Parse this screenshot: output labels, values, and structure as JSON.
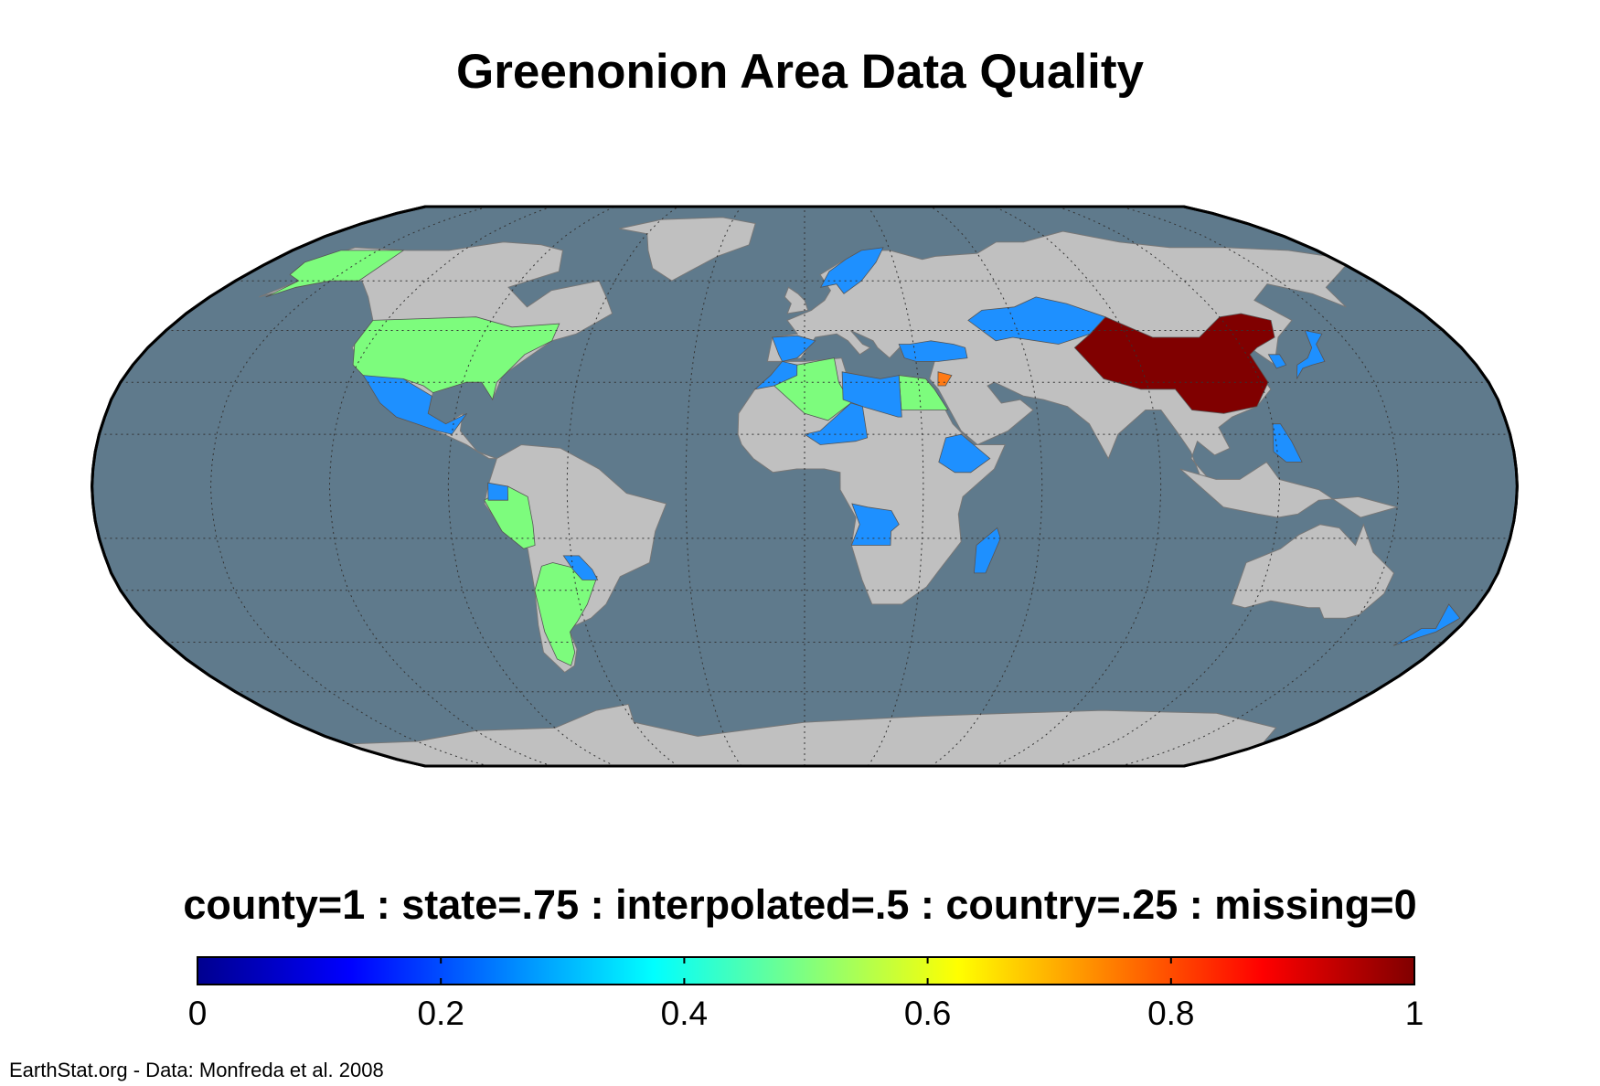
{
  "title": "Greenonion Area Data Quality",
  "legend_title": "county=1 : state=.75 : interpolated=.5 : country=.25 : missing=0",
  "colorbar": {
    "colormap": "jet",
    "min": 0,
    "max": 1,
    "ticks": [
      "0",
      "0.2",
      "0.4",
      "0.6",
      "0.8",
      "1"
    ]
  },
  "credit": "EarthStat.org - Data: Monfreda et al. 2008",
  "colors": {
    "ocean": "#5f7a8c",
    "land_missing": "#c0c0c0",
    "country": "#1e90ff",
    "interpolated": "#7dfc7d",
    "state": "#ff7a14",
    "county": "#800000",
    "graticule": "#333333"
  },
  "projection": "Robinson",
  "map_data": {
    "regions": [
      {
        "name": "China",
        "value": 1
      },
      {
        "name": "Jordan",
        "value": 0.75
      },
      {
        "name": "United States",
        "value": 0.5
      },
      {
        "name": "Alaska",
        "value": 0.5
      },
      {
        "name": "Algeria",
        "value": 0.5
      },
      {
        "name": "Egypt",
        "value": 0.5
      },
      {
        "name": "Peru",
        "value": 0.5
      },
      {
        "name": "Argentina",
        "value": 0.5
      },
      {
        "name": "Mexico",
        "value": 0.25
      },
      {
        "name": "Kazakhstan",
        "value": 0.25
      },
      {
        "name": "Japan",
        "value": 0.25
      },
      {
        "name": "Angola",
        "value": 0.25
      },
      {
        "name": "Ethiopia",
        "value": 0.25
      },
      {
        "name": "Madagascar",
        "value": 0.25
      },
      {
        "name": "New Zealand",
        "value": 0.25
      },
      {
        "name": "Libya",
        "value": 0.25
      },
      {
        "name": "Niger",
        "value": 0.25
      },
      {
        "name": "Spain",
        "value": 0.25
      },
      {
        "name": "Turkey",
        "value": 0.25
      },
      {
        "name": "Scandinavia",
        "value": 0.25
      },
      {
        "name": "Ecuador",
        "value": 0.25
      },
      {
        "name": "Paraguay",
        "value": 0.25
      },
      {
        "name": "South Korea",
        "value": 0.25
      },
      {
        "name": "Philippines",
        "value": 0.25
      },
      {
        "name": "Morocco",
        "value": 0.25
      }
    ]
  }
}
